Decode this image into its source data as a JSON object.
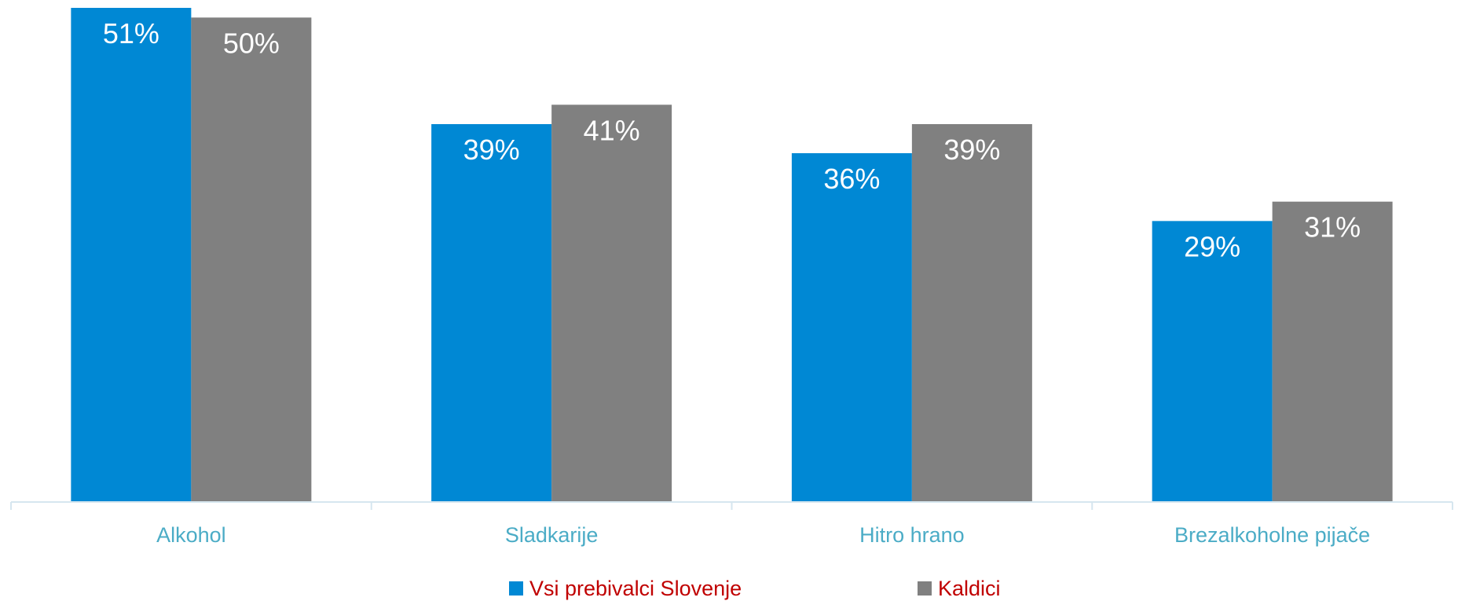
{
  "chart_data": {
    "type": "bar",
    "title": "",
    "xlabel": "",
    "ylabel": "",
    "ylim": [
      0,
      51
    ],
    "grid": false,
    "legend_position": "bottom",
    "categories": [
      "Alkohol",
      "Sladkarije",
      "Hitro hrano",
      "Brezalkoholne pijače"
    ],
    "series": [
      {
        "name": "Vsi prebivalci Slovenje",
        "color": "#0088d4",
        "values": [
          51,
          39,
          36,
          29
        ],
        "labels": [
          "51%",
          "39%",
          "36%",
          "29%"
        ]
      },
      {
        "name": "Kaldici",
        "color": "#808080",
        "values": [
          50,
          41,
          39,
          31
        ],
        "labels": [
          "50%",
          "41%",
          "39%",
          "31%"
        ]
      }
    ],
    "colors": {
      "axis": "#d6e6ef",
      "category_label": "#4bacc6",
      "legend_label": "#c00000",
      "data_label": "#ffffff"
    }
  }
}
